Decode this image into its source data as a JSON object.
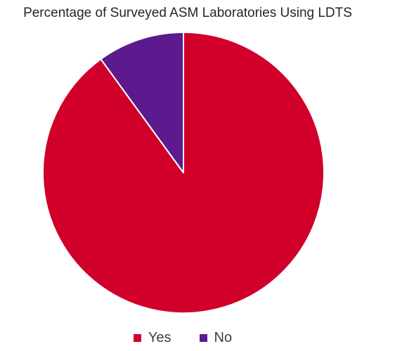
{
  "chart_data": {
    "type": "pie",
    "title": "Percentage of Surveyed ASM Laboratories Using LDTS",
    "categories": [
      "Yes",
      "No"
    ],
    "values": [
      90,
      10
    ],
    "colors": [
      "#d0002a",
      "#5c1a8e"
    ],
    "legend_position": "bottom",
    "start_angle": "12 o'clock",
    "direction": "clockwise"
  }
}
